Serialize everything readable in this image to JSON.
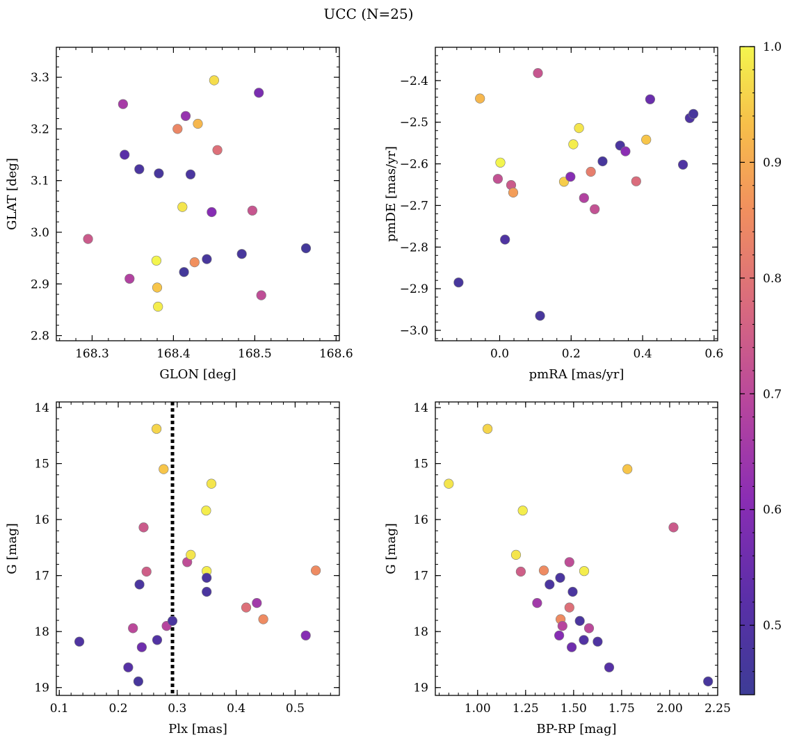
{
  "title": "UCC (N=25)",
  "colorbar": {
    "min": 0.44,
    "max": 1.0,
    "ticks": [
      0.5,
      0.6,
      0.7,
      0.8,
      0.9,
      1.0
    ],
    "tick_labels": [
      "0.5",
      "0.6",
      "0.7",
      "0.8",
      "0.9",
      "1.0"
    ],
    "colormap": "plasma"
  },
  "chart_data": [
    {
      "type": "scatter",
      "id": "glon-glat",
      "xlabel": "GLON [deg]",
      "ylabel": "GLAT [deg]",
      "xlim": [
        168.256,
        168.604
      ],
      "ylim": [
        2.79,
        3.358
      ],
      "y_inverted": false,
      "xticks": [
        168.3,
        168.4,
        168.5,
        168.6
      ],
      "xtick_labels": [
        "168.3",
        "168.4",
        "168.5",
        "168.6"
      ],
      "yticks": [
        2.8,
        2.9,
        3.0,
        3.1,
        3.2,
        3.3
      ],
      "ytick_labels": [
        "2.8",
        "2.9",
        "3.0",
        "3.1",
        "3.2",
        "3.3"
      ],
      "points": [
        {
          "x": 168.295,
          "y": 2.987,
          "c": 0.74
        },
        {
          "x": 168.338,
          "y": 3.248,
          "c": 0.66
        },
        {
          "x": 168.34,
          "y": 3.15,
          "c": 0.52
        },
        {
          "x": 168.346,
          "y": 2.91,
          "c": 0.68
        },
        {
          "x": 168.358,
          "y": 3.122,
          "c": 0.48
        },
        {
          "x": 168.379,
          "y": 2.945,
          "c": 1.0
        },
        {
          "x": 168.38,
          "y": 2.893,
          "c": 0.94
        },
        {
          "x": 168.381,
          "y": 2.856,
          "c": 0.99
        },
        {
          "x": 168.382,
          "y": 3.114,
          "c": 0.47
        },
        {
          "x": 168.405,
          "y": 3.2,
          "c": 0.84
        },
        {
          "x": 168.411,
          "y": 3.049,
          "c": 0.98
        },
        {
          "x": 168.413,
          "y": 2.923,
          "c": 0.46
        },
        {
          "x": 168.415,
          "y": 3.225,
          "c": 0.63
        },
        {
          "x": 168.421,
          "y": 3.112,
          "c": 0.48
        },
        {
          "x": 168.426,
          "y": 2.942,
          "c": 0.86
        },
        {
          "x": 168.43,
          "y": 3.21,
          "c": 0.92
        },
        {
          "x": 168.441,
          "y": 2.948,
          "c": 0.47
        },
        {
          "x": 168.447,
          "y": 3.039,
          "c": 0.6
        },
        {
          "x": 168.45,
          "y": 3.294,
          "c": 0.97
        },
        {
          "x": 168.454,
          "y": 3.159,
          "c": 0.79
        },
        {
          "x": 168.484,
          "y": 2.958,
          "c": 0.47
        },
        {
          "x": 168.497,
          "y": 3.042,
          "c": 0.73
        },
        {
          "x": 168.505,
          "y": 3.27,
          "c": 0.58
        },
        {
          "x": 168.508,
          "y": 2.878,
          "c": 0.71
        },
        {
          "x": 168.563,
          "y": 2.969,
          "c": 0.46
        }
      ]
    },
    {
      "type": "scatter",
      "id": "pmra-pmde",
      "xlabel": "pmRA [mas/yr]",
      "ylabel": "pmDE [mas/yr]",
      "xlim": [
        -0.18,
        0.61
      ],
      "ylim": [
        -3.025,
        -2.32
      ],
      "y_inverted": false,
      "xticks": [
        0.0,
        0.2,
        0.4,
        0.6
      ],
      "xtick_labels": [
        "0.0",
        "0.2",
        "0.4",
        "0.6"
      ],
      "yticks": [
        -3.0,
        -2.9,
        -2.8,
        -2.7,
        -2.6,
        -2.5,
        -2.4
      ],
      "ytick_labels": [
        "−3.0",
        "−2.9",
        "−2.8",
        "−2.7",
        "−2.6",
        "−2.5",
        "−2.4"
      ],
      "points": [
        {
          "x": -0.115,
          "y": -2.885,
          "c": 0.47
        },
        {
          "x": -0.055,
          "y": -2.443,
          "c": 0.92
        },
        {
          "x": -0.005,
          "y": -2.636,
          "c": 0.72
        },
        {
          "x": 0.002,
          "y": -2.597,
          "c": 1.0
        },
        {
          "x": 0.015,
          "y": -2.782,
          "c": 0.49
        },
        {
          "x": 0.032,
          "y": -2.651,
          "c": 0.74
        },
        {
          "x": 0.038,
          "y": -2.669,
          "c": 0.88
        },
        {
          "x": 0.107,
          "y": -2.382,
          "c": 0.73
        },
        {
          "x": 0.113,
          "y": -2.965,
          "c": 0.47
        },
        {
          "x": 0.18,
          "y": -2.643,
          "c": 0.95
        },
        {
          "x": 0.198,
          "y": -2.631,
          "c": 0.6
        },
        {
          "x": 0.206,
          "y": -2.553,
          "c": 0.99
        },
        {
          "x": 0.222,
          "y": -2.514,
          "c": 0.98
        },
        {
          "x": 0.236,
          "y": -2.682,
          "c": 0.68
        },
        {
          "x": 0.255,
          "y": -2.619,
          "c": 0.82
        },
        {
          "x": 0.266,
          "y": -2.709,
          "c": 0.72
        },
        {
          "x": 0.288,
          "y": -2.594,
          "c": 0.47
        },
        {
          "x": 0.337,
          "y": -2.556,
          "c": 0.48
        },
        {
          "x": 0.352,
          "y": -2.57,
          "c": 0.61
        },
        {
          "x": 0.382,
          "y": -2.642,
          "c": 0.78
        },
        {
          "x": 0.41,
          "y": -2.542,
          "c": 0.94
        },
        {
          "x": 0.421,
          "y": -2.445,
          "c": 0.55
        },
        {
          "x": 0.513,
          "y": -2.602,
          "c": 0.49
        },
        {
          "x": 0.532,
          "y": -2.49,
          "c": 0.49
        },
        {
          "x": 0.542,
          "y": -2.48,
          "c": 0.47
        }
      ]
    },
    {
      "type": "scatter",
      "id": "plx-g",
      "xlabel": "Plx [mas]",
      "ylabel": "G [mag]",
      "xlim": [
        0.095,
        0.575
      ],
      "ylim": [
        13.9,
        19.14
      ],
      "y_inverted": true,
      "vline": 0.292,
      "xticks": [
        0.1,
        0.2,
        0.3,
        0.4,
        0.5
      ],
      "xtick_labels": [
        "0.1",
        "0.2",
        "0.3",
        "0.4",
        "0.5"
      ],
      "yticks": [
        14,
        15,
        16,
        17,
        18,
        19
      ],
      "ytick_labels": [
        "14",
        "15",
        "16",
        "17",
        "18",
        "19"
      ],
      "points": [
        {
          "x": 0.134,
          "y": 18.18,
          "c": 0.49
        },
        {
          "x": 0.217,
          "y": 18.64,
          "c": 0.51
        },
        {
          "x": 0.225,
          "y": 17.94,
          "c": 0.7
        },
        {
          "x": 0.234,
          "y": 18.89,
          "c": 0.47
        },
        {
          "x": 0.236,
          "y": 17.16,
          "c": 0.48
        },
        {
          "x": 0.24,
          "y": 18.28,
          "c": 0.56
        },
        {
          "x": 0.243,
          "y": 16.14,
          "c": 0.74
        },
        {
          "x": 0.248,
          "y": 16.93,
          "c": 0.75
        },
        {
          "x": 0.265,
          "y": 14.38,
          "c": 0.96
        },
        {
          "x": 0.266,
          "y": 18.15,
          "c": 0.5
        },
        {
          "x": 0.277,
          "y": 15.1,
          "c": 0.94
        },
        {
          "x": 0.282,
          "y": 17.9,
          "c": 0.69
        },
        {
          "x": 0.292,
          "y": 17.81,
          "c": 0.48
        },
        {
          "x": 0.317,
          "y": 16.76,
          "c": 0.71
        },
        {
          "x": 0.323,
          "y": 16.63,
          "c": 0.98
        },
        {
          "x": 0.349,
          "y": 15.84,
          "c": 0.99
        },
        {
          "x": 0.35,
          "y": 16.92,
          "c": 0.99
        },
        {
          "x": 0.35,
          "y": 17.04,
          "c": 0.48
        },
        {
          "x": 0.35,
          "y": 17.29,
          "c": 0.48
        },
        {
          "x": 0.358,
          "y": 15.36,
          "c": 0.98
        },
        {
          "x": 0.417,
          "y": 17.57,
          "c": 0.79
        },
        {
          "x": 0.435,
          "y": 17.49,
          "c": 0.65
        },
        {
          "x": 0.446,
          "y": 17.78,
          "c": 0.85
        },
        {
          "x": 0.518,
          "y": 18.07,
          "c": 0.6
        },
        {
          "x": 0.535,
          "y": 16.91,
          "c": 0.85
        }
      ]
    },
    {
      "type": "scatter",
      "id": "bprp-g",
      "xlabel": "BP-RP [mag]",
      "ylabel": "G [mag]",
      "xlim": [
        0.78,
        2.25
      ],
      "ylim": [
        13.9,
        19.14
      ],
      "y_inverted": true,
      "xticks": [
        1.0,
        1.25,
        1.5,
        1.75,
        2.0,
        2.25
      ],
      "xtick_labels": [
        "1.00",
        "1.25",
        "1.50",
        "1.75",
        "2.00",
        "2.25"
      ],
      "yticks": [
        14,
        15,
        16,
        17,
        18,
        19
      ],
      "ytick_labels": [
        "14",
        "15",
        "16",
        "17",
        "18",
        "19"
      ],
      "points": [
        {
          "x": 0.85,
          "y": 15.36,
          "c": 0.98
        },
        {
          "x": 1.052,
          "y": 14.38,
          "c": 0.96
        },
        {
          "x": 1.2,
          "y": 16.63,
          "c": 0.98
        },
        {
          "x": 1.225,
          "y": 16.93,
          "c": 0.75
        },
        {
          "x": 1.235,
          "y": 15.84,
          "c": 0.99
        },
        {
          "x": 1.31,
          "y": 17.49,
          "c": 0.65
        },
        {
          "x": 1.345,
          "y": 16.91,
          "c": 0.85
        },
        {
          "x": 1.375,
          "y": 17.16,
          "c": 0.48
        },
        {
          "x": 1.425,
          "y": 18.07,
          "c": 0.6
        },
        {
          "x": 1.43,
          "y": 17.04,
          "c": 0.48
        },
        {
          "x": 1.432,
          "y": 17.78,
          "c": 0.85
        },
        {
          "x": 1.442,
          "y": 17.9,
          "c": 0.69
        },
        {
          "x": 1.478,
          "y": 16.76,
          "c": 0.71
        },
        {
          "x": 1.478,
          "y": 17.57,
          "c": 0.79
        },
        {
          "x": 1.49,
          "y": 18.28,
          "c": 0.56
        },
        {
          "x": 1.495,
          "y": 17.29,
          "c": 0.48
        },
        {
          "x": 1.532,
          "y": 17.81,
          "c": 0.48
        },
        {
          "x": 1.553,
          "y": 18.15,
          "c": 0.5
        },
        {
          "x": 1.555,
          "y": 16.92,
          "c": 0.99
        },
        {
          "x": 1.58,
          "y": 17.94,
          "c": 0.7
        },
        {
          "x": 1.625,
          "y": 18.18,
          "c": 0.49
        },
        {
          "x": 1.685,
          "y": 18.64,
          "c": 0.51
        },
        {
          "x": 1.78,
          "y": 15.1,
          "c": 0.94
        },
        {
          "x": 2.02,
          "y": 16.14,
          "c": 0.74
        },
        {
          "x": 2.2,
          "y": 18.89,
          "c": 0.47
        }
      ]
    }
  ]
}
